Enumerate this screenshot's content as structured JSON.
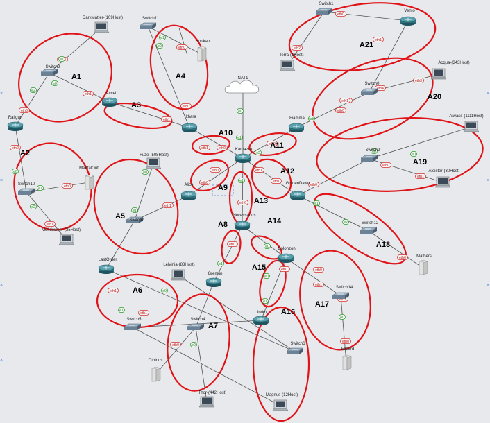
{
  "colors": {
    "background": "#e7e9ec",
    "ellipse": "#e01418",
    "link": "#505050",
    "router": "#2f6f7a",
    "switch": "#6b8296",
    "iface_red": "#d83030",
    "iface_green": "#2c9a2c"
  },
  "nodes": [
    {
      "id": "darkmatter",
      "label": "DarkMatter-(109Host)",
      "type": "pc"
    },
    {
      "id": "switch11",
      "label": "Switch11",
      "type": "switch"
    },
    {
      "id": "houkan",
      "label": "Houkan",
      "type": "server"
    },
    {
      "id": "switch9",
      "label": "Switch9",
      "type": "switch"
    },
    {
      "id": "accel",
      "label": "Accel",
      "type": "router"
    },
    {
      "id": "railgun",
      "label": "Railgun",
      "type": "router"
    },
    {
      "id": "nat1",
      "label": "NAT1",
      "type": "cloud"
    },
    {
      "id": "ithara",
      "label": "Ithara",
      "type": "router"
    },
    {
      "id": "kamazuki",
      "label": "Kamazuki",
      "type": "router"
    },
    {
      "id": "fiamma",
      "label": "Fiamma",
      "type": "router"
    },
    {
      "id": "switch1",
      "label": "Switch1",
      "type": "switch"
    },
    {
      "id": "vento",
      "label": "Vento",
      "type": "router"
    },
    {
      "id": "terra",
      "label": "Terra-(1Host)",
      "type": "pc"
    },
    {
      "id": "acqua",
      "label": "Acqua-(343Host)",
      "type": "pc"
    },
    {
      "id": "switch0",
      "label": "Switch0",
      "type": "switch"
    },
    {
      "id": "aiwass",
      "label": "Aiwass-(1111Host)",
      "type": "pc"
    },
    {
      "id": "switch2",
      "label": "Switch2",
      "type": "switch"
    },
    {
      "id": "aleister",
      "label": "Aleister-(30Host)",
      "type": "pc"
    },
    {
      "id": "goldendawn",
      "label": "GoldenDawn",
      "type": "router"
    },
    {
      "id": "switch10",
      "label": "Switch10",
      "type": "switch"
    },
    {
      "id": "mentalout",
      "label": "MentalOut",
      "type": "server"
    },
    {
      "id": "meltdowner",
      "label": "Meltdowner-(25Host)",
      "type": "pc"
    },
    {
      "id": "fuze",
      "label": "Fuze-(508Host)",
      "type": "pc"
    },
    {
      "id": "alice",
      "label": "Alice",
      "type": "router"
    },
    {
      "id": "switch7",
      "label": "Switch7",
      "type": "switch"
    },
    {
      "id": "necessarius",
      "label": "Necessarius",
      "type": "router"
    },
    {
      "id": "switch12",
      "label": "Switch12",
      "type": "switch"
    },
    {
      "id": "mathers",
      "label": "Mathers",
      "type": "server"
    },
    {
      "id": "lastorder",
      "label": "LastOrder",
      "type": "router"
    },
    {
      "id": "lelvinia",
      "label": "Lelvinia-(83Host)",
      "type": "pc"
    },
    {
      "id": "gremlin",
      "label": "Gremlin",
      "type": "router"
    },
    {
      "id": "colonzon",
      "label": "Colonzon",
      "type": "router"
    },
    {
      "id": "switch5",
      "label": "Switch5",
      "type": "switch"
    },
    {
      "id": "switch14",
      "label": "Switch14",
      "type": "switch"
    },
    {
      "id": "switch4",
      "label": "Switch4",
      "type": "switch"
    },
    {
      "id": "index",
      "label": "Index",
      "type": "router"
    },
    {
      "id": "switch6",
      "label": "Switch6",
      "type": "switch"
    },
    {
      "id": "elizard",
      "label": "Elizard",
      "type": "server"
    },
    {
      "id": "othinus",
      "label": "Othinus",
      "type": "server"
    },
    {
      "id": "thor",
      "label": "Thor-(442Host)",
      "type": "pc"
    },
    {
      "id": "magnus",
      "label": "Magnus-(12Host)",
      "type": "pc"
    }
  ],
  "links": [
    [
      "darkmatter",
      "switch9"
    ],
    [
      "switch9",
      "railgun"
    ],
    [
      "switch9",
      "accel"
    ],
    [
      "switch11",
      "houkan"
    ],
    [
      "switch11",
      "ithara"
    ],
    [
      "accel",
      "ithara"
    ],
    [
      "railgun",
      "switch10"
    ],
    [
      "switch10",
      "mentalout"
    ],
    [
      "switch10",
      "meltdowner"
    ],
    [
      "nat1",
      "kamazuki"
    ],
    [
      "ithara",
      "kamazuki"
    ],
    [
      "kamazuki",
      "fiamma"
    ],
    [
      "fiamma",
      "switch0"
    ],
    [
      "switch0",
      "acqua"
    ],
    [
      "switch0",
      "vento"
    ],
    [
      "vento",
      "switch1"
    ],
    [
      "switch1",
      "terra"
    ],
    [
      "kamazuki",
      "alice"
    ],
    [
      "kamazuki",
      "necessarius"
    ],
    [
      "kamazuki",
      "goldendawn"
    ],
    [
      "goldendawn",
      "switch2"
    ],
    [
      "switch2",
      "aiwass"
    ],
    [
      "switch2",
      "aleister"
    ],
    [
      "goldendawn",
      "switch12"
    ],
    [
      "switch12",
      "mathers"
    ],
    [
      "alice",
      "switch7"
    ],
    [
      "switch7",
      "fuze"
    ],
    [
      "switch7",
      "lastorder"
    ],
    [
      "lastorder",
      "switch6"
    ],
    [
      "switch6",
      "lelvinia"
    ],
    [
      "necessarius",
      "gremlin"
    ],
    [
      "necessarius",
      "colonzon"
    ],
    [
      "gremlin",
      "switch4"
    ],
    [
      "switch4",
      "othinus"
    ],
    [
      "switch4",
      "thor"
    ],
    [
      "colonzon",
      "index"
    ],
    [
      "index",
      "switch5"
    ],
    [
      "switch5",
      "magnus"
    ],
    [
      "colonzon",
      "switch14"
    ],
    [
      "switch14",
      "elizard"
    ]
  ],
  "interfaces": [
    {
      "t": "eth0",
      "c": "r"
    },
    {
      "t": "e0",
      "c": "g"
    },
    {
      "t": "e1",
      "c": "g"
    },
    {
      "t": "e2",
      "c": "g"
    },
    {
      "t": "eth0",
      "c": "r"
    },
    {
      "t": "eth1",
      "c": "r"
    },
    {
      "t": "eth0",
      "c": "r"
    },
    {
      "t": "e1",
      "c": "g"
    },
    {
      "t": "e0",
      "c": "g"
    },
    {
      "t": "eth1",
      "c": "r"
    },
    {
      "t": "eth0",
      "c": "r"
    },
    {
      "t": "eth1",
      "c": "r"
    },
    {
      "t": "eth0",
      "c": "r"
    },
    {
      "t": "e0",
      "c": "g"
    },
    {
      "t": "e1",
      "c": "g"
    },
    {
      "t": "e2",
      "c": "g"
    },
    {
      "t": "eth0",
      "c": "r"
    },
    {
      "t": "nat0",
      "c": "g"
    },
    {
      "t": "eth0",
      "c": "r"
    },
    {
      "t": "eth1",
      "c": "r"
    },
    {
      "t": "eth1",
      "c": "r"
    },
    {
      "t": "eth0",
      "c": "r"
    },
    {
      "t": "eth2",
      "c": "r"
    },
    {
      "t": "eth3",
      "c": "r"
    },
    {
      "t": "eth4",
      "c": "r"
    },
    {
      "t": "eth1",
      "c": "r"
    },
    {
      "t": "e0",
      "c": "g"
    },
    {
      "t": "eth0",
      "c": "r"
    },
    {
      "t": "eth1",
      "c": "r"
    },
    {
      "t": "e0",
      "c": "g"
    },
    {
      "t": "eth0",
      "c": "r"
    },
    {
      "t": "eth1",
      "c": "r"
    },
    {
      "t": "e0",
      "c": "g"
    },
    {
      "t": "e1",
      "c": "g"
    },
    {
      "t": "eth0",
      "c": "r"
    },
    {
      "t": "e0",
      "c": "g"
    },
    {
      "t": "e1",
      "c": "g"
    },
    {
      "t": "e2",
      "c": "g"
    },
    {
      "t": "eth0",
      "c": "r"
    },
    {
      "t": "eth1",
      "c": "r"
    },
    {
      "t": "e0",
      "c": "g"
    },
    {
      "t": "e1",
      "c": "g"
    },
    {
      "t": "eth1",
      "c": "r"
    },
    {
      "t": "eth0",
      "c": "r"
    },
    {
      "t": "eth0",
      "c": "r"
    },
    {
      "t": "eth1",
      "c": "r"
    },
    {
      "t": "eth0",
      "c": "r"
    },
    {
      "t": "eth1",
      "c": "r"
    },
    {
      "t": "e1",
      "c": "g"
    },
    {
      "t": "e0",
      "c": "g"
    },
    {
      "t": "eth1",
      "c": "r"
    },
    {
      "t": "e0",
      "c": "g"
    },
    {
      "t": "e1",
      "c": "g"
    },
    {
      "t": "eth0",
      "c": "r"
    },
    {
      "t": "eth1",
      "c": "r"
    },
    {
      "t": "eth1",
      "c": "r"
    },
    {
      "t": "eth0",
      "c": "r"
    },
    {
      "t": "e0",
      "c": "g"
    },
    {
      "t": "e1",
      "c": "g"
    },
    {
      "t": "e2",
      "c": "g"
    },
    {
      "t": "eth0",
      "c": "r"
    },
    {
      "t": "eth1",
      "c": "r"
    },
    {
      "t": "e0",
      "c": "g"
    },
    {
      "t": "e1",
      "c": "g"
    },
    {
      "t": "eth1",
      "c": "r"
    },
    {
      "t": "eth0",
      "c": "r"
    },
    {
      "t": "e0",
      "c": "g"
    },
    {
      "t": "e1",
      "c": "g"
    }
  ],
  "areas": [
    "A1",
    "A2",
    "A3",
    "A4",
    "A5",
    "A6",
    "A7",
    "A8",
    "A9",
    "A10",
    "A11",
    "A12",
    "A13",
    "A14",
    "A15",
    "A16",
    "A17",
    "A18",
    "A19",
    "A20",
    "A21"
  ]
}
